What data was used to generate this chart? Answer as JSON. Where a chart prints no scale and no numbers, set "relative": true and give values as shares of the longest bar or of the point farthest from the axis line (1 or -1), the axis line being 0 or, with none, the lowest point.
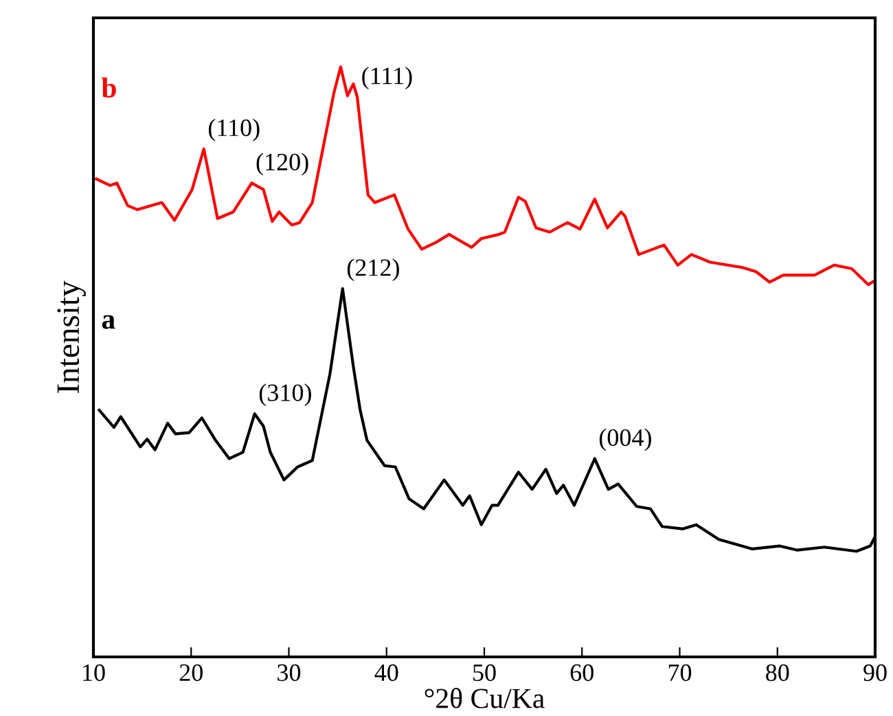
{
  "chart_data": {
    "type": "line",
    "relative": true,
    "xlabel": "°2θ Cu/Ka",
    "ylabel": "Intensity",
    "xlim": [
      10,
      90
    ],
    "xticks": [
      10,
      20,
      30,
      40,
      50,
      60,
      70,
      80,
      90
    ],
    "grid": false,
    "legend": false,
    "marker": "none",
    "line_style": "solid",
    "series": [
      {
        "name": "b",
        "color": "#ff0000",
        "x": [
          10.3,
          11.7,
          12.4,
          13.5,
          14.5,
          17.0,
          18.3,
          20.1,
          21.3,
          22.7,
          24.3,
          26.2,
          27.4,
          28.3,
          29.0,
          30.3,
          31.1,
          32.4,
          34.6,
          35.3,
          36.0,
          36.6,
          37.0,
          38.1,
          38.8,
          40.8,
          42.2,
          43.6,
          45.0,
          46.4,
          48.7,
          49.7,
          51.5,
          52.1,
          53.5,
          54.2,
          55.3,
          56.7,
          58.5,
          59.8,
          61.3,
          62.6,
          64.0,
          64.4,
          65.8,
          68.4,
          69.8,
          71.2,
          73.1,
          76.4,
          77.8,
          79.2,
          80.6,
          83.8,
          85.8,
          87.6,
          89.3,
          90
        ],
        "values": [
          0.81,
          0.799,
          0.803,
          0.765,
          0.758,
          0.77,
          0.74,
          0.792,
          0.861,
          0.743,
          0.754,
          0.803,
          0.792,
          0.738,
          0.754,
          0.732,
          0.736,
          0.77,
          0.955,
          1.0,
          0.951,
          0.971,
          0.949,
          0.783,
          0.77,
          0.783,
          0.725,
          0.691,
          0.702,
          0.716,
          0.694,
          0.709,
          0.716,
          0.72,
          0.779,
          0.772,
          0.727,
          0.72,
          0.736,
          0.725,
          0.776,
          0.727,
          0.754,
          0.747,
          0.682,
          0.698,
          0.664,
          0.682,
          0.669,
          0.66,
          0.653,
          0.635,
          0.647,
          0.647,
          0.664,
          0.658,
          0.631,
          0.638
        ]
      },
      {
        "name": "a",
        "color": "#000000",
        "x": [
          10.6,
          12.1,
          12.8,
          14.8,
          15.5,
          16.3,
          17.6,
          18.4,
          19.8,
          21.1,
          22.5,
          23.9,
          25.3,
          26.5,
          27.4,
          28.1,
          29.5,
          30.9,
          32.4,
          34.2,
          35.5,
          36.6,
          37.3,
          38.0,
          39.8,
          40.9,
          42.3,
          43.8,
          45.9,
          47.8,
          48.5,
          49.7,
          50.8,
          51.4,
          53.5,
          54.9,
          56.3,
          57.4,
          58.1,
          59.2,
          61.3,
          62.7,
          63.7,
          65.6,
          67.0,
          68.2,
          70.3,
          71.7,
          74.0,
          77.4,
          80.2,
          82.0,
          84.8,
          88.1,
          89.5,
          90
        ],
        "values": [
          0.418,
          0.389,
          0.407,
          0.356,
          0.369,
          0.351,
          0.396,
          0.378,
          0.38,
          0.405,
          0.367,
          0.336,
          0.347,
          0.412,
          0.391,
          0.347,
          0.3,
          0.322,
          0.333,
          0.479,
          0.624,
          0.492,
          0.418,
          0.367,
          0.324,
          0.322,
          0.268,
          0.251,
          0.3,
          0.257,
          0.273,
          0.224,
          0.257,
          0.257,
          0.313,
          0.284,
          0.318,
          0.277,
          0.291,
          0.257,
          0.336,
          0.284,
          0.293,
          0.255,
          0.251,
          0.221,
          0.217,
          0.224,
          0.199,
          0.183,
          0.188,
          0.181,
          0.186,
          0.179,
          0.188,
          0.204
        ]
      }
    ],
    "annotations": [
      {
        "text": "(110)",
        "x": 21.3,
        "y": 0.861
      },
      {
        "text": "(120)",
        "x": 26.2,
        "y": 0.803
      },
      {
        "text": "(111)",
        "x": 37.0,
        "y": 0.949
      },
      {
        "text": "(212)",
        "x": 35.5,
        "y": 0.624
      },
      {
        "text": "(310)",
        "x": 26.5,
        "y": 0.412
      },
      {
        "text": "(004)",
        "x": 61.3,
        "y": 0.336
      }
    ]
  }
}
